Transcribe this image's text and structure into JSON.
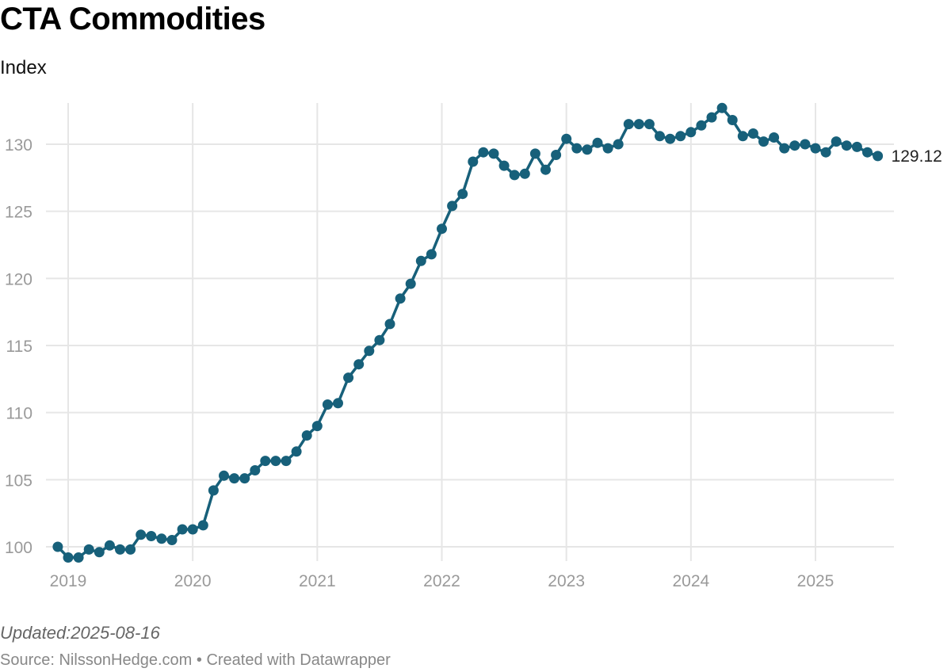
{
  "header": {
    "title": "CTA Commodities",
    "subtitle": "Index"
  },
  "footer": {
    "updated": "Updated:2025-08-16",
    "source": "Source: NilssonHedge.com • Created with Datawrapper"
  },
  "colors": {
    "series": "#17607a",
    "grid": "#e6e6e6",
    "tick_text": "#9a9a9a",
    "last_label": "#222222"
  },
  "chart_data": {
    "type": "line",
    "title": "CTA Commodities",
    "subtitle": "Index",
    "xlabel": "",
    "ylabel": "",
    "xlim": [
      "2018-12",
      "2025-08"
    ],
    "ylim": [
      99,
      132.9
    ],
    "x_ticks": [
      "2019",
      "2020",
      "2021",
      "2022",
      "2023",
      "2024",
      "2025"
    ],
    "y_ticks": [
      100,
      105,
      110,
      115,
      120,
      125,
      130
    ],
    "grid": true,
    "legend": "none",
    "last_value_label": "129.12",
    "series": [
      {
        "x": [
          "2018-12",
          "2019-01",
          "2019-02",
          "2019-03",
          "2019-04",
          "2019-05",
          "2019-06",
          "2019-07",
          "2019-08",
          "2019-09",
          "2019-10",
          "2019-11",
          "2019-12",
          "2020-01",
          "2020-02",
          "2020-03",
          "2020-04",
          "2020-05",
          "2020-06",
          "2020-07",
          "2020-08",
          "2020-09",
          "2020-10",
          "2020-11",
          "2020-12",
          "2021-01",
          "2021-02",
          "2021-03",
          "2021-04",
          "2021-05",
          "2021-06",
          "2021-07",
          "2021-08",
          "2021-09",
          "2021-10",
          "2021-11",
          "2021-12",
          "2022-01",
          "2022-02",
          "2022-03",
          "2022-04",
          "2022-05",
          "2022-06",
          "2022-07",
          "2022-08",
          "2022-09",
          "2022-10",
          "2022-11",
          "2022-12",
          "2023-01",
          "2023-02",
          "2023-03",
          "2023-04",
          "2023-05",
          "2023-06",
          "2023-07",
          "2023-08",
          "2023-09",
          "2023-10",
          "2023-11",
          "2023-12",
          "2024-01",
          "2024-02",
          "2024-03",
          "2024-04",
          "2024-05",
          "2024-06",
          "2024-07",
          "2024-08",
          "2024-09",
          "2024-10",
          "2024-11",
          "2024-12",
          "2025-01",
          "2025-02",
          "2025-03",
          "2025-04",
          "2025-05",
          "2025-06",
          "2025-07"
        ],
        "values": [
          100.0,
          99.2,
          99.2,
          99.8,
          99.6,
          100.1,
          99.8,
          99.8,
          100.9,
          100.8,
          100.6,
          100.5,
          101.3,
          101.3,
          101.6,
          104.2,
          105.3,
          105.1,
          105.1,
          105.7,
          106.4,
          106.4,
          106.4,
          107.1,
          108.3,
          109.0,
          110.6,
          110.7,
          112.6,
          113.6,
          114.6,
          115.4,
          116.6,
          118.5,
          119.6,
          121.3,
          121.8,
          123.7,
          125.4,
          126.3,
          128.7,
          129.4,
          129.3,
          128.4,
          127.7,
          127.8,
          129.3,
          128.1,
          129.2,
          130.4,
          129.7,
          129.6,
          130.1,
          129.7,
          130.0,
          131.5,
          131.5,
          131.5,
          130.6,
          130.4,
          130.6,
          130.9,
          131.4,
          132.0,
          132.7,
          131.8,
          130.6,
          130.8,
          130.2,
          130.5,
          129.7,
          129.9,
          130.0,
          129.7,
          129.4,
          130.2,
          129.9,
          129.8,
          129.4,
          129.12
        ]
      }
    ]
  }
}
